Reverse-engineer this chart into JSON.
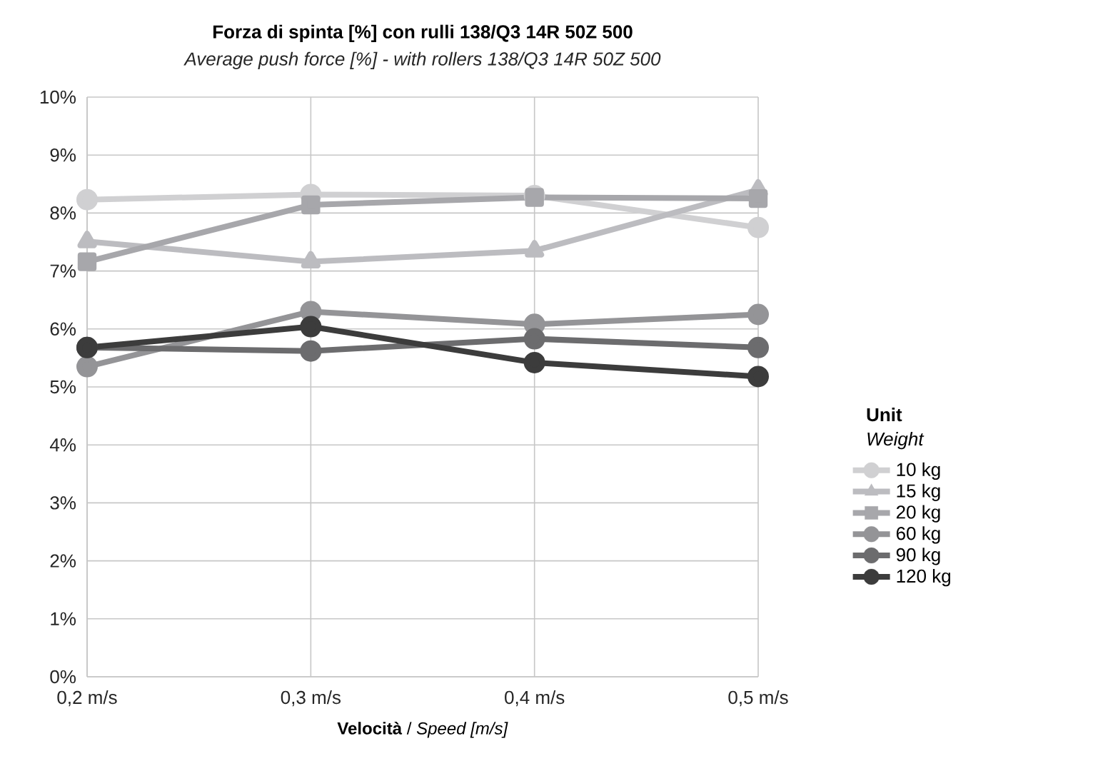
{
  "chart_data": {
    "type": "line",
    "title": "Forza di spinta  [%] con rulli 138/Q3 14R 50Z 500",
    "subtitle": "Average push force [%] - with rollers 138/Q3 14R 50Z 500",
    "xlabel": "**Velocità** / *Speed [m/s]*",
    "legend_title": "**Unit** *Weight*",
    "categories": [
      "0,2 m/s",
      "0,3 m/s",
      "0,4 m/s",
      "0,5 m/s"
    ],
    "ylim": [
      0,
      10
    ],
    "yticks": [
      {
        "value": 0,
        "label": "0%"
      },
      {
        "value": 1,
        "label": "1%"
      },
      {
        "value": 2,
        "label": "2%"
      },
      {
        "value": 3,
        "label": "3%"
      },
      {
        "value": 4,
        "label": "4%"
      },
      {
        "value": 5,
        "label": "5%"
      },
      {
        "value": 6,
        "label": "6%"
      },
      {
        "value": 7,
        "label": "7%"
      },
      {
        "value": 8,
        "label": "8%"
      },
      {
        "value": 9,
        "label": "9%"
      },
      {
        "value": 10,
        "label": "10%"
      }
    ],
    "grid": true,
    "legend": "right",
    "line_style": "solid",
    "series": [
      {
        "name": "10 kg",
        "color": "#d0d0d2",
        "marker": "circle",
        "values": [
          8.23,
          8.32,
          8.3,
          7.75
        ]
      },
      {
        "name": "15 kg",
        "color": "#bcbcc0",
        "marker": "triangle",
        "values": [
          7.51,
          7.16,
          7.35,
          8.4
        ]
      },
      {
        "name": "20 kg",
        "color": "#a7a7ab",
        "marker": "square",
        "values": [
          7.16,
          8.14,
          8.27,
          8.25
        ]
      },
      {
        "name": "60 kg",
        "color": "#949497",
        "marker": "circle",
        "values": [
          5.35,
          6.3,
          6.08,
          6.25
        ]
      },
      {
        "name": "90 kg",
        "color": "#6c6c6e",
        "marker": "circle",
        "values": [
          5.68,
          5.62,
          5.83,
          5.68
        ]
      },
      {
        "name": "120 kg",
        "color": "#3c3c3c",
        "marker": "circle",
        "values": [
          5.68,
          6.04,
          5.42,
          5.18
        ]
      }
    ]
  }
}
